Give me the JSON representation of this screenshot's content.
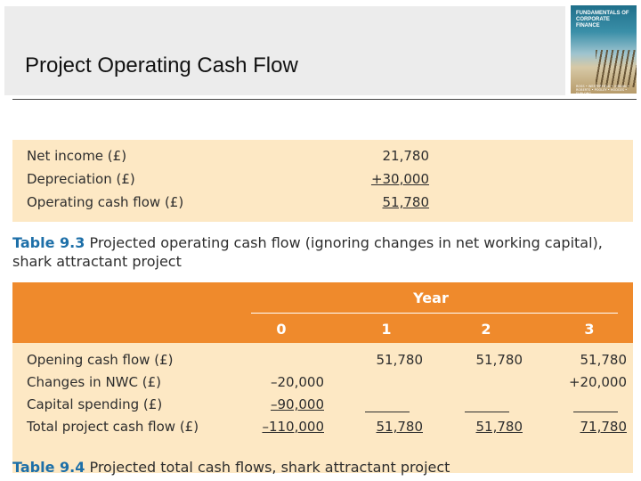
{
  "slide": {
    "title": "Project Operating Cash Flow"
  },
  "book_cover": {
    "title": "FUNDAMENTALS OF CORPORATE FINANCE",
    "authors": "ROSS • WESTERFIELD • JORDAN • ROBERTS • POOLEY • HODGES • FURLONG"
  },
  "table_9_3": {
    "rows": [
      {
        "label": "Net income (£)",
        "value": "21,780"
      },
      {
        "label": "Depreciation (£)",
        "value": "+30,000"
      },
      {
        "label": "Operating cash flow (£)",
        "value": "51,780"
      }
    ],
    "caption_number": "Table 9.3",
    "caption_text": "Projected operating cash flow (ignoring changes in net working capital), shark attractant project"
  },
  "table_9_4": {
    "header_group": "Year",
    "columns": [
      "0",
      "1",
      "2",
      "3"
    ],
    "rows": [
      {
        "label": "Opening cash flow (£)",
        "values": [
          "",
          "51,780",
          "51,780",
          "51,780"
        ]
      },
      {
        "label": "Changes in NWC (£)",
        "values": [
          "–20,000",
          "",
          "",
          "+20,000"
        ]
      },
      {
        "label": "Capital spending (£)",
        "values": [
          "–90,000",
          "",
          "",
          ""
        ]
      },
      {
        "label": "Total project cash flow (£)",
        "values": [
          "–110,000",
          "51,780",
          "51,780",
          "71,780"
        ]
      }
    ],
    "caption_number": "Table 9.4",
    "caption_text": "Projected total cash flows, shark attractant project"
  },
  "colors": {
    "header_orange": "#ef8a2c",
    "table_cream": "#fde8c4",
    "caption_blue": "#1d6fa8"
  }
}
